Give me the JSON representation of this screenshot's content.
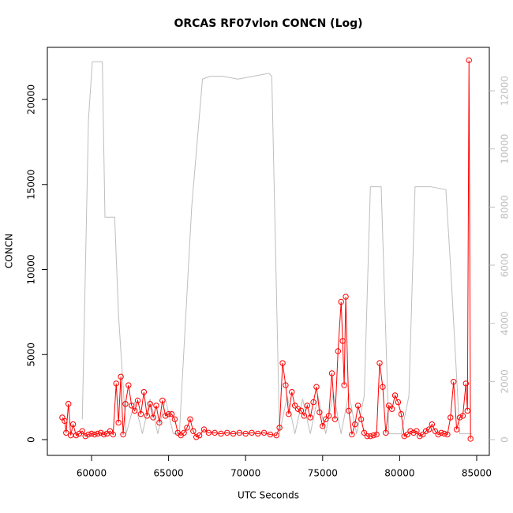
{
  "chart_data": {
    "type": "line",
    "title": "ORCAS RF07vlon CONCN (Log)",
    "x_label": "UTC Seconds",
    "y_label": "CONCN",
    "xlim": [
      57131,
      85820
    ],
    "xticks": [
      60000,
      65000,
      70000,
      75000,
      80000,
      85000
    ],
    "ylim": [
      -928,
      23063
    ],
    "yticks": [
      0,
      5000,
      10000,
      15000,
      20000
    ],
    "y2lim": [
      -543,
      13494
    ],
    "y2ticks": [
      0,
      2000,
      4000,
      6000,
      8000,
      10000,
      12000
    ],
    "series": [
      {
        "color": "#ff0000",
        "markers": true,
        "x": [
          58100,
          58250,
          58350,
          58500,
          58650,
          58800,
          59000,
          59200,
          59400,
          59600,
          59800,
          60000,
          60200,
          60400,
          60600,
          60800,
          61000,
          61200,
          61400,
          61600,
          61750,
          61900,
          62050,
          62200,
          62400,
          62600,
          62800,
          63000,
          63200,
          63400,
          63600,
          63800,
          64000,
          64200,
          64400,
          64600,
          64800,
          65000,
          65200,
          65400,
          65600,
          65800,
          66000,
          66200,
          66400,
          66600,
          66800,
          67000,
          67300,
          67600,
          68000,
          68400,
          68800,
          69200,
          69600,
          70000,
          70400,
          70800,
          71200,
          71600,
          72000,
          72200,
          72400,
          72600,
          72800,
          73000,
          73200,
          73400,
          73600,
          73800,
          74000,
          74200,
          74400,
          74600,
          74800,
          75000,
          75200,
          75400,
          75600,
          75800,
          76000,
          76200,
          76300,
          76400,
          76500,
          76700,
          76900,
          77100,
          77300,
          77500,
          77700,
          77900,
          78100,
          78300,
          78500,
          78700,
          78900,
          79100,
          79300,
          79500,
          79700,
          79900,
          80100,
          80300,
          80500,
          80700,
          80900,
          81100,
          81300,
          81500,
          81700,
          81900,
          82100,
          82300,
          82500,
          82700,
          82900,
          83100,
          83300,
          83500,
          83700,
          83900,
          84100,
          84300,
          84400,
          84500,
          84600
        ],
        "values": [
          1300,
          1100,
          400,
          2100,
          250,
          900,
          250,
          350,
          500,
          200,
          300,
          350,
          300,
          350,
          400,
          300,
          350,
          500,
          300,
          3300,
          1000,
          3700,
          300,
          2100,
          3200,
          2000,
          1700,
          2300,
          1500,
          2800,
          1400,
          2100,
          1300,
          2000,
          1000,
          2300,
          1400,
          1500,
          1500,
          1200,
          400,
          250,
          400,
          700,
          1200,
          500,
          150,
          250,
          600,
          400,
          400,
          350,
          400,
          350,
          400,
          350,
          400,
          350,
          400,
          300,
          250,
          700,
          4500,
          3200,
          1500,
          2800,
          2000,
          1800,
          1700,
          1400,
          2000,
          1300,
          2200,
          3100,
          1600,
          800,
          1200,
          1400,
          3900,
          1200,
          5200,
          8100,
          5800,
          3200,
          8400,
          1700,
          300,
          900,
          2000,
          1200,
          400,
          200,
          200,
          250,
          300,
          4500,
          3100,
          400,
          2000,
          1800,
          2600,
          2200,
          1500,
          200,
          300,
          500,
          400,
          500,
          200,
          300,
          500,
          600,
          900,
          500,
          300,
          400,
          350,
          300,
          1300,
          3400,
          600,
          1300,
          1400,
          3300,
          1700,
          22300,
          50
        ]
      },
      {
        "color": "#bebebe",
        "axis": "y2",
        "x": [
          59400,
          59800,
          60050,
          60700,
          60870,
          61500,
          61750,
          62250,
          62800,
          63300,
          63800,
          64300,
          64800,
          65300,
          65700,
          66500,
          67200,
          67700,
          68500,
          69500,
          70500,
          71500,
          71700,
          72200,
          72700,
          73200,
          73700,
          74200,
          74700,
          75200,
          75700,
          76200,
          76700,
          77200,
          77700,
          78100,
          78800,
          79300,
          80100,
          80600,
          81000,
          82000,
          83000,
          83300,
          83900,
          84400,
          84700
        ],
        "values": [
          700,
          11000,
          13000,
          13000,
          7650,
          7650,
          4300,
          200,
          1300,
          200,
          1400,
          200,
          1400,
          200,
          200,
          8000,
          12400,
          12500,
          12500,
          12400,
          12500,
          12600,
          12500,
          200,
          1500,
          200,
          1400,
          200,
          1500,
          200,
          1600,
          200,
          1600,
          200,
          1500,
          8700,
          8700,
          200,
          200,
          1500,
          8700,
          8700,
          8600,
          6000,
          200,
          200,
          200
        ]
      }
    ]
  }
}
